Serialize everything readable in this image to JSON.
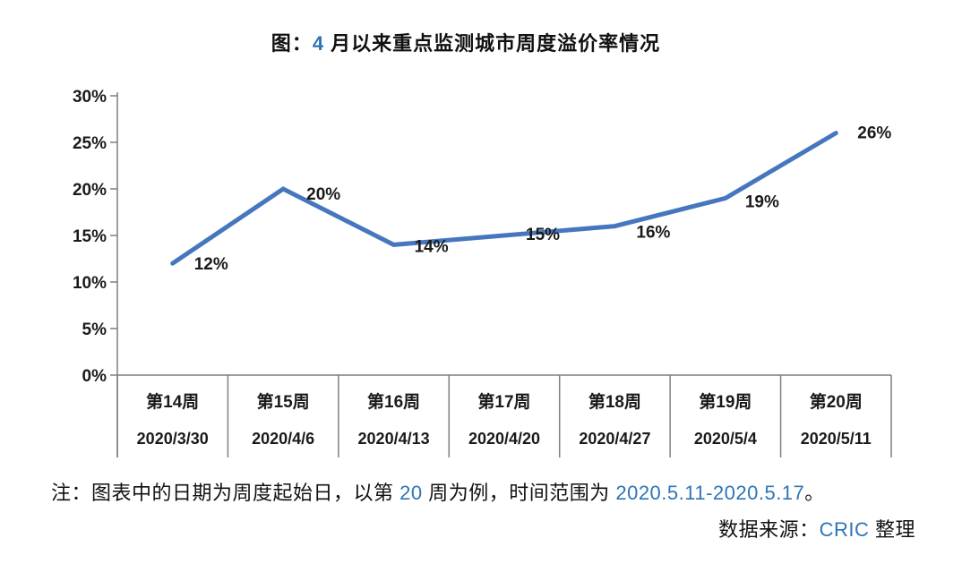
{
  "title": {
    "prefix": "图：",
    "highlight_number": "4",
    "suffix": " 月以来重点监测城市周度溢价率情况"
  },
  "chart_data": {
    "type": "line",
    "categories": [
      "第14周",
      "第15周",
      "第16周",
      "第17周",
      "第18周",
      "第19周",
      "第20周"
    ],
    "category_dates": [
      "2020/3/30",
      "2020/4/6",
      "2020/4/13",
      "2020/4/20",
      "2020/4/27",
      "2020/5/4",
      "2020/5/11"
    ],
    "values": [
      12,
      20,
      14,
      15,
      16,
      19,
      26
    ],
    "data_labels": [
      "12%",
      "20%",
      "14%",
      "15%",
      "16%",
      "19%",
      "26%"
    ],
    "title": "图：4 月以来重点监测城市周度溢价率情况",
    "xlabel": "",
    "ylabel": "",
    "ylim": [
      0,
      30
    ],
    "y_ticks": [
      {
        "value": 30,
        "label": "30%"
      },
      {
        "value": 25,
        "label": "25%"
      },
      {
        "value": 20,
        "label": "20%"
      },
      {
        "value": 15,
        "label": "15%"
      },
      {
        "value": 10,
        "label": "10%"
      },
      {
        "value": 5,
        "label": "5%"
      },
      {
        "value": 0,
        "label": "0%"
      }
    ],
    "grid": false,
    "legend_position": "none"
  },
  "note": {
    "prefix": "注：图表中的日期为周度起始日，以第 ",
    "week_number": "20",
    "middle": " 周为例，时间范围为 ",
    "date_range": "2020.5.11-2020.5.17",
    "suffix": "。"
  },
  "source": {
    "prefix": "数据来源：",
    "org": "CRIC",
    "suffix": " 整理"
  },
  "colors": {
    "line": "#4677be",
    "axis": "#7f7f7f",
    "accent_blue": "#2e75b6",
    "text": "#1a1a1a"
  }
}
